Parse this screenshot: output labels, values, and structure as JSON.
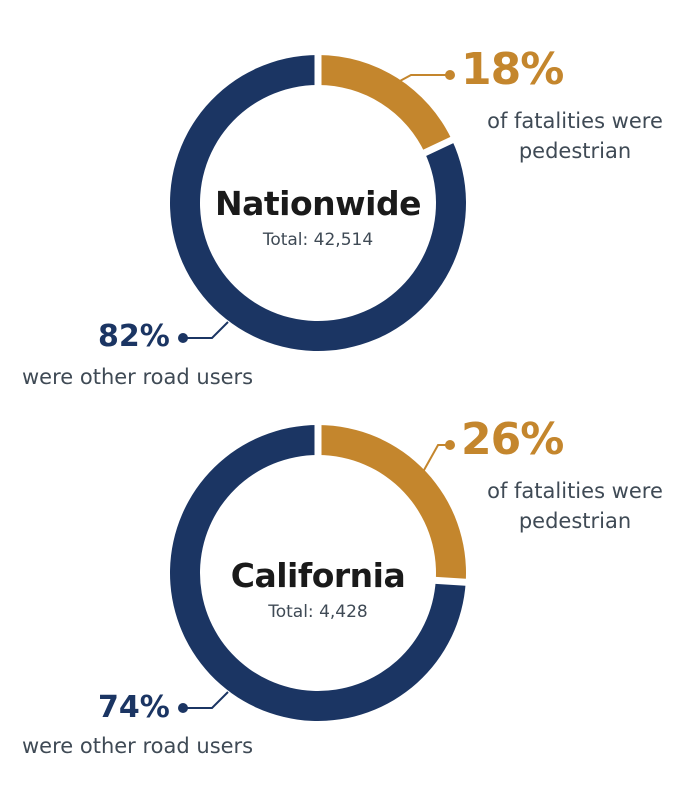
{
  "colors": {
    "pedestrian": "#c4862d",
    "other": "#1b3563",
    "text": "#3f4a55"
  },
  "chart_data": [
    {
      "type": "pie",
      "title": "Nationwide",
      "subtitle": "Total: 42,514",
      "slices": [
        {
          "label": "of fatalities were pedestrian",
          "value": 18,
          "display": "18%",
          "color": "#c4862d"
        },
        {
          "label": "were other road users",
          "value": 82,
          "display": "82%",
          "color": "#1b3563"
        }
      ]
    },
    {
      "type": "pie",
      "title": "California",
      "subtitle": "Total: 4,428",
      "slices": [
        {
          "label": "of fatalities were pedestrian",
          "value": 26,
          "display": "26%",
          "color": "#c4862d"
        },
        {
          "label": "were other road users",
          "value": 74,
          "display": "74%",
          "color": "#1b3563"
        }
      ]
    }
  ]
}
